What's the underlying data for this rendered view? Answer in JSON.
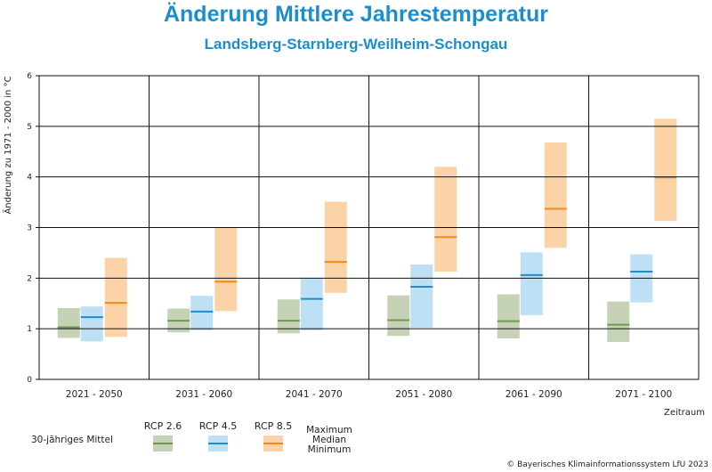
{
  "chart_data": {
    "type": "bar",
    "title": "Änderung Mittlere Jahrestemperatur",
    "subtitle": "Landsberg-Starnberg-Weilheim-Schongau",
    "ylabel": "Änderung zu 1971 - 2000 in °C",
    "xlabel": "Zeitraum",
    "ylim": [
      0,
      6
    ],
    "yticks": [
      "0",
      "1",
      "2",
      "3",
      "4",
      "5",
      "6"
    ],
    "grid": true,
    "categories": [
      "2021 - 2050",
      "2031 - 2060",
      "2041 - 2070",
      "2051 - 2080",
      "2061 - 2090",
      "2071 - 2100"
    ],
    "series": [
      {
        "name": "RCP 2.6",
        "fill": "#c6d2b6",
        "line": "#6e9a4d",
        "min": [
          0.82,
          0.93,
          0.91,
          0.86,
          0.81,
          0.74
        ],
        "median": [
          1.03,
          1.16,
          1.16,
          1.17,
          1.15,
          1.08
        ],
        "max": [
          1.41,
          1.4,
          1.58,
          1.66,
          1.68,
          1.54
        ]
      },
      {
        "name": "RCP 4.5",
        "fill": "#bde0f4",
        "line": "#1b8ed0",
        "min": [
          0.75,
          0.97,
          0.97,
          1.02,
          1.27,
          1.52
        ],
        "median": [
          1.23,
          1.34,
          1.59,
          1.83,
          2.06,
          2.13
        ],
        "max": [
          1.44,
          1.65,
          2.01,
          2.27,
          2.51,
          2.47
        ]
      },
      {
        "name": "RCP 8.5",
        "fill": "#fbd3a6",
        "line": "#f08c1e",
        "min": [
          0.84,
          1.35,
          1.71,
          2.13,
          2.6,
          3.13
        ],
        "median": [
          1.51,
          1.93,
          2.32,
          2.81,
          3.37,
          3.99
        ],
        "max": [
          2.4,
          3.0,
          3.51,
          4.2,
          4.68,
          5.15
        ]
      }
    ]
  },
  "legend": {
    "mean_label": "30-jähriges Mittel",
    "stat_max": "Maximum",
    "stat_median": "Median",
    "stat_min": "Minimum"
  },
  "copyright": "© Bayerisches Klimainformationssystem LfU 2023"
}
